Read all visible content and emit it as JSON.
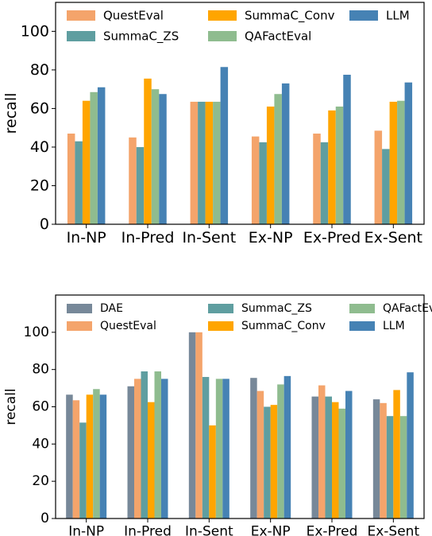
{
  "chart_data": [
    {
      "type": "bar",
      "ylabel": "recall",
      "xlabel": "",
      "ylim": [
        0,
        115
      ],
      "yticks": [
        0,
        20,
        40,
        60,
        80,
        100
      ],
      "legend": {
        "placement": "top",
        "columns": 3
      },
      "grid": false,
      "categories": [
        "In-NP",
        "In-Pred",
        "In-Sent",
        "Ex-NP",
        "Ex-Pred",
        "Ex-Sent"
      ],
      "series": [
        {
          "name": "QuestEval",
          "color": "#f4a46b",
          "values": [
            47,
            45,
            63.5,
            45.5,
            47,
            48.5
          ]
        },
        {
          "name": "SummaC_ZS",
          "color": "#5f9ea0",
          "values": [
            43,
            40,
            63.5,
            42.5,
            42.5,
            39
          ]
        },
        {
          "name": "SummaC_Conv",
          "color": "#ffa500",
          "values": [
            64,
            75.5,
            63.5,
            61,
            59,
            63.5
          ]
        },
        {
          "name": "QAFactEval",
          "color": "#8fbc8f",
          "values": [
            68.5,
            70,
            63.5,
            67.5,
            61,
            64
          ]
        },
        {
          "name": "LLM",
          "color": "#4682b4",
          "values": [
            71,
            67.5,
            81.5,
            73,
            77.5,
            73.5
          ]
        }
      ]
    },
    {
      "type": "bar",
      "ylabel": "recall",
      "xlabel": "",
      "ylim": [
        0,
        120
      ],
      "yticks": [
        0,
        20,
        40,
        60,
        80,
        100
      ],
      "legend": {
        "placement": "top",
        "columns": 3
      },
      "grid": false,
      "categories": [
        "In-NP",
        "In-Pred",
        "In-Sent",
        "Ex-NP",
        "Ex-Pred",
        "Ex-Sent"
      ],
      "series": [
        {
          "name": "DAE",
          "color": "#778899",
          "values": [
            66.5,
            71,
            100,
            75.5,
            65.5,
            64
          ]
        },
        {
          "name": "QuestEval",
          "color": "#f4a46b",
          "values": [
            63.5,
            75,
            100,
            68.5,
            71.5,
            62
          ]
        },
        {
          "name": "SummaC_ZS",
          "color": "#5f9ea0",
          "values": [
            51.5,
            79,
            76,
            60,
            65.5,
            55
          ]
        },
        {
          "name": "SummaC_Conv",
          "color": "#ffa500",
          "values": [
            66.5,
            62.5,
            50,
            61,
            62.5,
            69
          ]
        },
        {
          "name": "QAFactEval",
          "color": "#8fbc8f",
          "values": [
            69.5,
            79,
            75,
            72,
            59,
            55
          ]
        },
        {
          "name": "LLM",
          "color": "#4682b4",
          "values": [
            66.5,
            75,
            75,
            76.5,
            68.5,
            78.5
          ]
        }
      ]
    }
  ]
}
